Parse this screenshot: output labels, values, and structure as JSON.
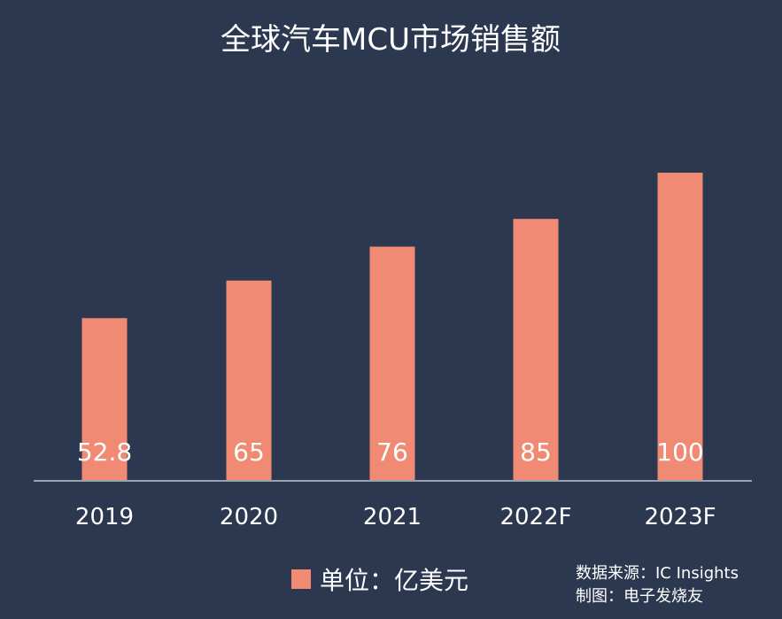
{
  "chart_data": {
    "type": "bar",
    "title": "全球汽车MCU市场销售额",
    "categories": [
      "2019",
      "2020",
      "2021",
      "2022F",
      "2023F"
    ],
    "series": [
      {
        "name": "单位：亿美元",
        "values": [
          52.8,
          65,
          76,
          85,
          100
        ],
        "color": "#f08a72"
      }
    ],
    "data_labels": [
      "52.8",
      "65",
      "76",
      "85",
      "100"
    ],
    "legend": {
      "label": "单位：亿美元",
      "placement": "bottom"
    },
    "grid": false,
    "ylim": [
      0,
      100
    ]
  },
  "footer": {
    "source": "数据来源：IC Insights",
    "maker": "制图：电子发烧友"
  },
  "colors": {
    "background": "#2b3850",
    "bar": "#f08a72",
    "axis": "#9aa3b3",
    "text": "#ffffff"
  }
}
